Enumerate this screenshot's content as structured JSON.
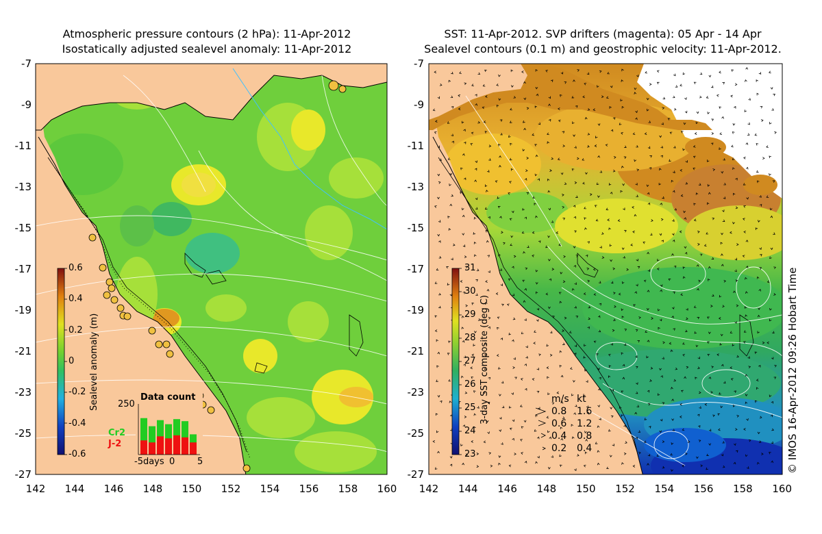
{
  "left_panel": {
    "title_line1": "Atmospheric pressure contours (2 hPa): 11-Apr-2012",
    "title_line2": "Isostatically adjusted sealevel anomaly: 11-Apr-2012",
    "colorbar": {
      "label": "Sealevel anomaly (m)",
      "ticks": [
        "0.6",
        "0.4",
        "0.2",
        "0",
        "-0.2",
        "-0.4",
        "-0.6"
      ]
    },
    "inset": {
      "title": "Data count",
      "ymax_label": "250",
      "xticks": [
        "-5days",
        "0",
        "5"
      ],
      "series": [
        {
          "name": "Cr2",
          "color": "#22cc22"
        },
        {
          "name": "J-2",
          "color": "#ee1111"
        }
      ],
      "green_counts": [
        180,
        140,
        170,
        150,
        175,
        165,
        100
      ],
      "red_counts": [
        70,
        60,
        90,
        80,
        95,
        85,
        60
      ]
    }
  },
  "right_panel": {
    "title_line1": "SST: 11-Apr-2012. SVP drifters (magenta): 05 Apr - 14 Apr",
    "title_line2": "Sealevel contours (0.1 m) and geostrophic velocity: 11-Apr-2012.",
    "colorbar": {
      "label": "3-day SST composite (deg C)",
      "ticks": [
        "31",
        "30",
        "29",
        "28",
        "27",
        "26",
        "25",
        "24",
        "23"
      ]
    },
    "velocity_legend": {
      "header_ms": "m/s",
      "header_kt": "kt",
      "rows": [
        {
          "ms": "0.8",
          "kt": "1.6"
        },
        {
          "ms": "0.6",
          "kt": "1.2"
        },
        {
          "ms": "0.4",
          "kt": "0.8"
        },
        {
          "ms": "0.2",
          "kt": "0.4"
        }
      ]
    }
  },
  "axes": {
    "y_ticks": [
      "-7",
      "-9",
      "-11",
      "-13",
      "-15",
      "-17",
      "-19",
      "-21",
      "-23",
      "-25",
      "-27"
    ],
    "x_ticks": [
      "142",
      "144",
      "146",
      "148",
      "150",
      "152",
      "154",
      "156",
      "158",
      "160"
    ]
  },
  "credit": "© IMOS 16-Apr-2012 09:26 Hobart Time",
  "colors": {
    "land": "#f9c89b",
    "sea_green": "#6fcf3c",
    "sea_lightgreen": "#a6e03a",
    "sea_yellow": "#e8e82a",
    "sst_orange": "#e0a020",
    "sst_green": "#3cb83c",
    "sst_blue": "#1060d0"
  }
}
